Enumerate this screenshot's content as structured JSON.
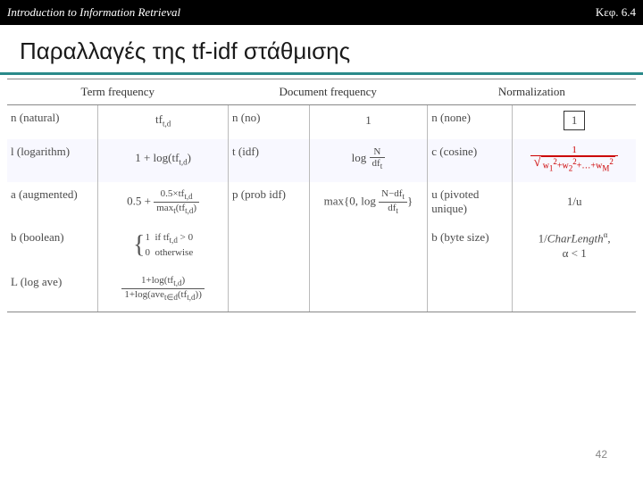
{
  "header": {
    "left": "Introduction to Information Retrieval",
    "right": "Κεφ. 6.4"
  },
  "title": "Παραλλαγές της tf-idf στάθμισης",
  "columns": {
    "tf": "Term frequency",
    "df": "Document frequency",
    "norm": "Normalization"
  },
  "rows": {
    "n": {
      "tf_name": "n (natural)",
      "df_name": "n (no)",
      "df_val": "1",
      "norm_name": "n (none)",
      "norm_val": "1"
    },
    "l": {
      "tf_name": "l (logarithm)",
      "df_name": "t (idf)",
      "norm_name": "c (cosine)"
    },
    "a": {
      "tf_name": "a (augmented)",
      "df_name": "p (prob idf)",
      "norm_name": "u (pivoted unique)",
      "norm_val": "1/u"
    },
    "b": {
      "tf_name": "b (boolean)",
      "norm_name": "b (byte size)"
    },
    "L": {
      "tf_name": "L (log ave)"
    }
  },
  "page": "42",
  "colors": {
    "header_bg": "#000000",
    "header_fg": "#ffffff",
    "underline": "#2a8a8a",
    "accent": "#cc0000",
    "text": "#4a4a4a"
  }
}
